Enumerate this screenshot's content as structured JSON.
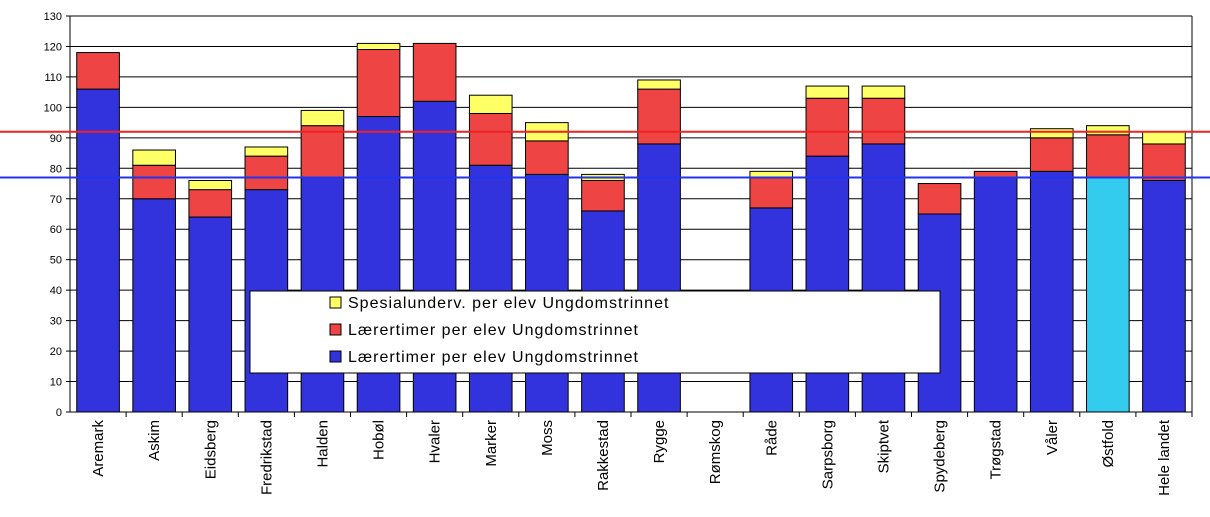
{
  "chart_data": {
    "type": "bar",
    "stacked": true,
    "categories": [
      "Aremark",
      "Askim",
      "Eidsberg",
      "Fredrikstad",
      "Halden",
      "Hobøl",
      "Hvaler",
      "Marker",
      "Moss",
      "Rakkestad",
      "Rygge",
      "Rømskog",
      "Råde",
      "Sarpsborg",
      "Skiptvet",
      "Spydeberg",
      "Trøgstad",
      "Våler",
      "Østfold",
      "Hele landet"
    ],
    "series": [
      {
        "name": "Lærertimer per elev Ungdomstrinnet",
        "color": "#3333dd",
        "values": [
          106,
          70,
          64,
          73,
          77,
          97,
          102,
          81,
          78,
          66,
          88,
          0,
          67,
          84,
          88,
          65,
          77,
          79,
          77,
          76
        ]
      },
      {
        "name": "Lærertimer per elev Ungdomstrinnet",
        "color": "#ee4444",
        "values": [
          12,
          11,
          9,
          11,
          17,
          22,
          19,
          17,
          11,
          10,
          18,
          0,
          10,
          19,
          15,
          10,
          2,
          11,
          14,
          12
        ]
      },
      {
        "name": "Spesialunderv. per elev Ungdomstrinnet",
        "color": "#ffff66",
        "values": [
          0,
          5,
          3,
          3,
          5,
          2,
          0,
          6,
          6,
          2,
          3,
          0,
          2,
          4,
          4,
          0,
          0,
          3,
          3,
          4
        ]
      }
    ],
    "highlight": {
      "category": "Østfold",
      "color": "#33ccee"
    },
    "reference_lines": [
      {
        "value": 92,
        "color": "#ee2222"
      },
      {
        "value": 77,
        "color": "#2233ee"
      }
    ],
    "yticks": [
      0,
      10,
      20,
      30,
      40,
      50,
      60,
      70,
      80,
      90,
      100,
      110,
      120,
      130
    ],
    "ylim": [
      0,
      130
    ],
    "grid": true,
    "legend_position": "center"
  }
}
